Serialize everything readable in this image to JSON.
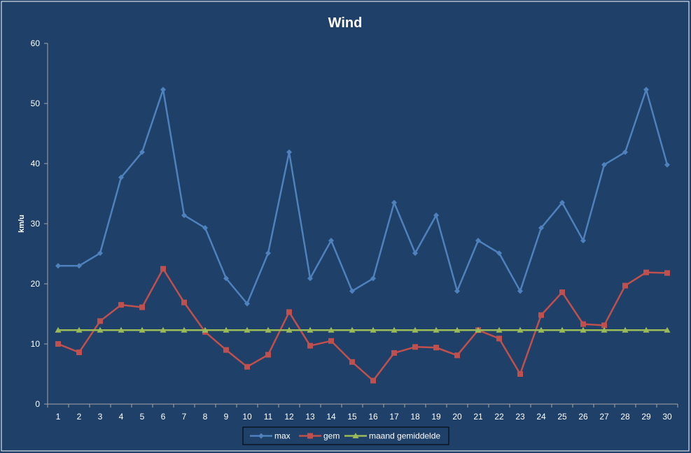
{
  "chart_data": {
    "type": "line",
    "title": "Wind",
    "xlabel": "",
    "ylabel": "km/u",
    "ylim": [
      0,
      60
    ],
    "yticks": [
      "0",
      "10",
      "20",
      "30",
      "40",
      "50",
      "60"
    ],
    "categories": [
      "1",
      "2",
      "3",
      "4",
      "5",
      "6",
      "7",
      "8",
      "9",
      "10",
      "11",
      "12",
      "13",
      "14",
      "15",
      "16",
      "17",
      "18",
      "19",
      "20",
      "21",
      "22",
      "23",
      "24",
      "25",
      "26",
      "27",
      "28",
      "29",
      "30"
    ],
    "grid": false,
    "legend_position": "bottom",
    "series": [
      {
        "name": "max",
        "color": "#4f81bd",
        "marker": "diamond",
        "values": [
          23.0,
          23.0,
          25.1,
          37.7,
          41.9,
          52.3,
          31.4,
          29.3,
          20.9,
          16.7,
          25.1,
          41.9,
          20.9,
          27.2,
          18.8,
          20.9,
          33.5,
          25.1,
          31.4,
          18.8,
          27.2,
          25.1,
          18.8,
          29.3,
          33.5,
          27.2,
          39.8,
          41.9,
          52.3,
          39.8
        ]
      },
      {
        "name": "gem",
        "color": "#c0504d",
        "marker": "square",
        "values": [
          10.0,
          8.6,
          13.8,
          16.5,
          16.1,
          22.5,
          16.9,
          12.0,
          9.0,
          6.2,
          8.2,
          15.3,
          9.7,
          10.5,
          7.0,
          3.9,
          8.5,
          9.5,
          9.4,
          8.1,
          12.3,
          10.9,
          5.0,
          14.8,
          18.6,
          13.3,
          13.1,
          19.7,
          21.9,
          21.8
        ]
      },
      {
        "name": "maand gemiddelde",
        "color": "#9bbb59",
        "marker": "triangle",
        "values": [
          12.3,
          12.3,
          12.3,
          12.3,
          12.3,
          12.3,
          12.3,
          12.3,
          12.3,
          12.3,
          12.3,
          12.3,
          12.3,
          12.3,
          12.3,
          12.3,
          12.3,
          12.3,
          12.3,
          12.3,
          12.3,
          12.3,
          12.3,
          12.3,
          12.3,
          12.3,
          12.3,
          12.3,
          12.3,
          12.3
        ]
      }
    ],
    "colors": {
      "background": "#1f4068",
      "axis": "#a6a6a6",
      "text": "#ffffff",
      "legend_border": "#000000"
    }
  }
}
